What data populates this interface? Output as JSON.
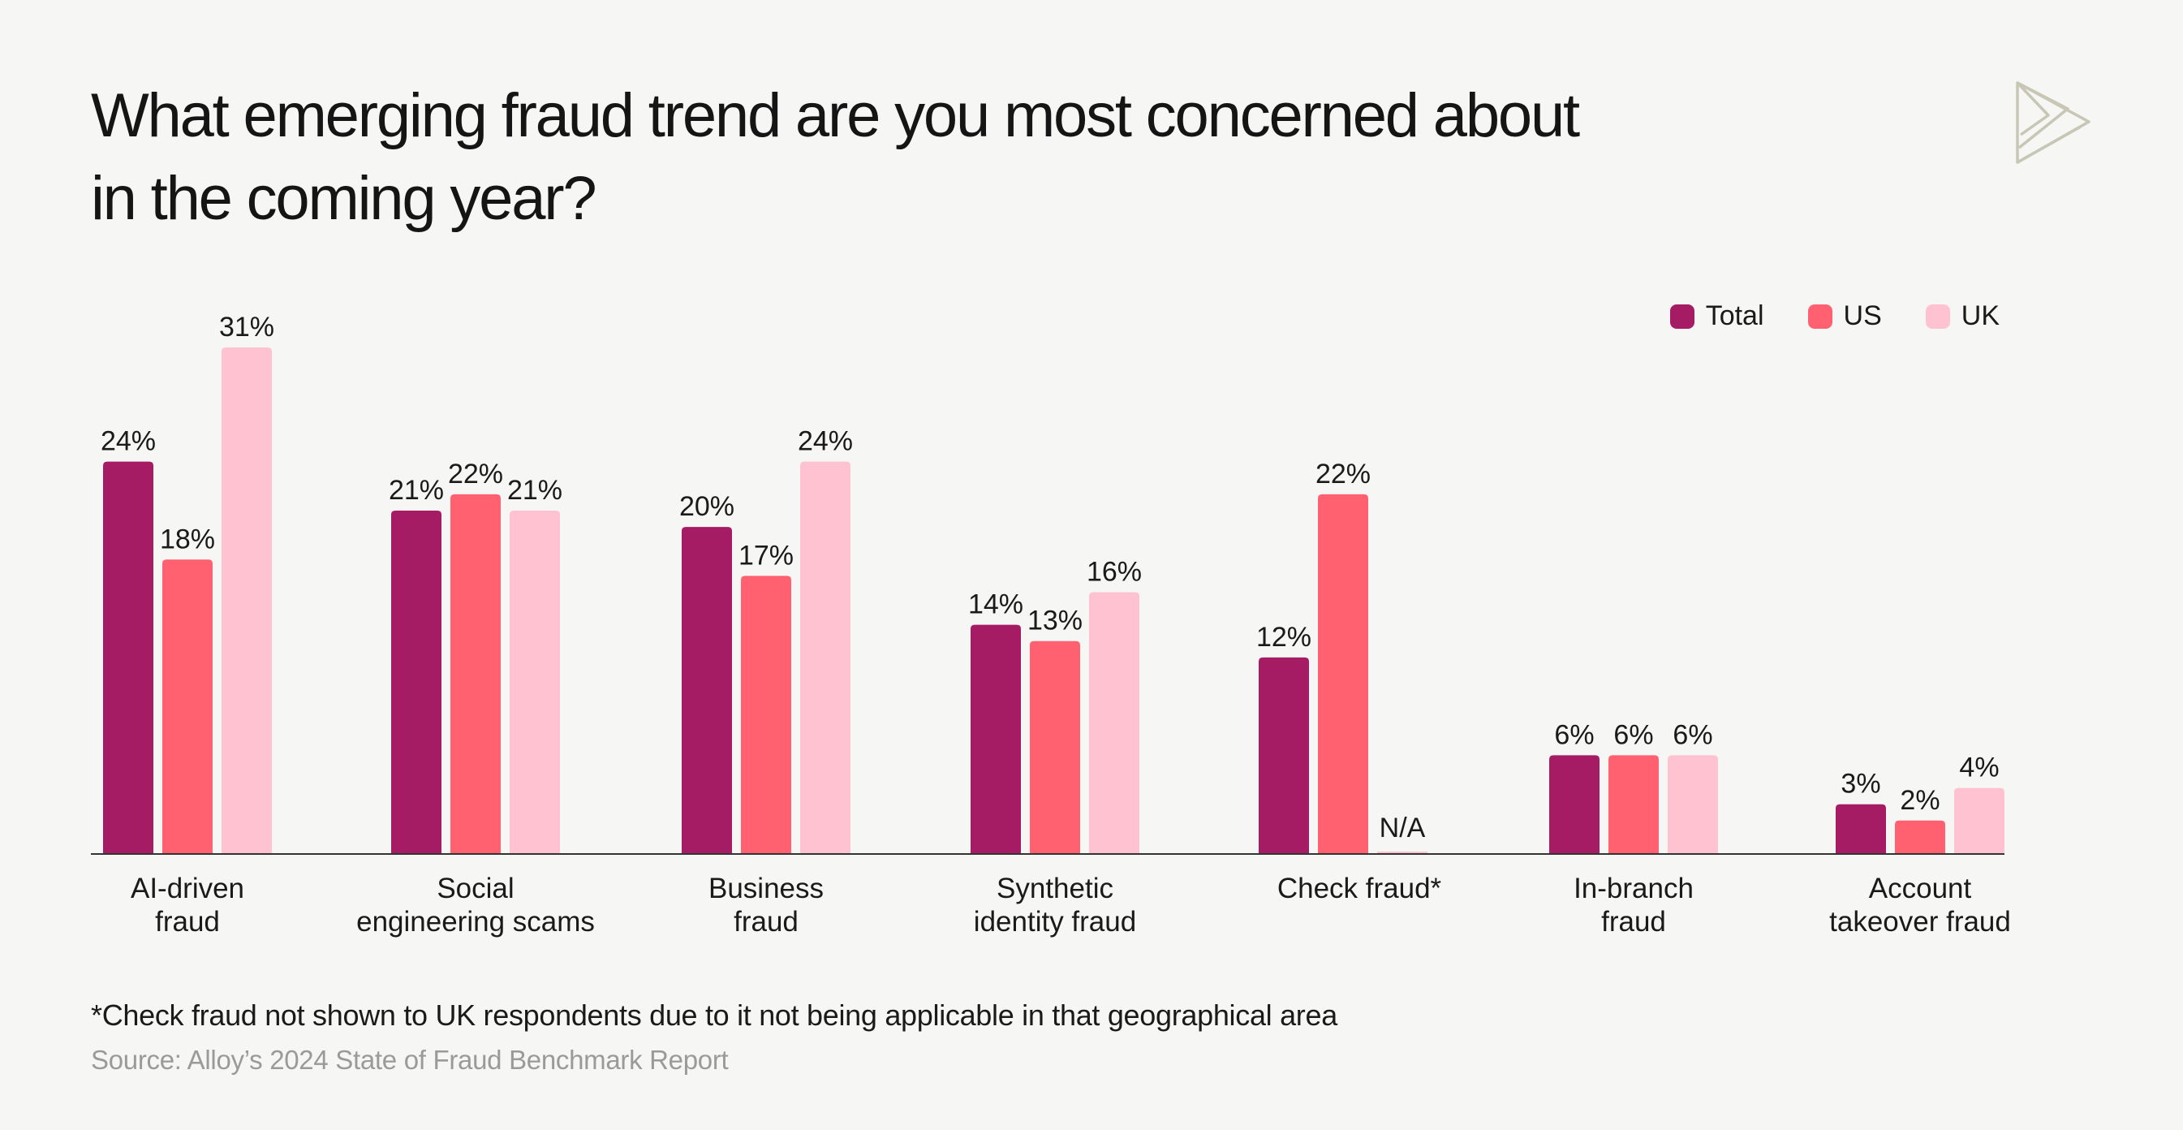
{
  "title": "What emerging fraud trend are you most concerned about in the coming year?",
  "footnote": "*Check fraud not shown to UK respondents due to it not being applicable in that geographical area",
  "source": "Source: Alloy’s 2024 State of Fraud Benchmark Report",
  "logo_icon": "triangle-logo-icon",
  "colors": {
    "Total": "#a51c64",
    "US": "#ff6170",
    "UK": "#ffc2d0",
    "axis": "#333333"
  },
  "chart_data": {
    "type": "bar",
    "title": "What emerging fraud trend are you most concerned about in the coming year?",
    "categories": [
      [
        "AI-driven",
        "fraud"
      ],
      [
        "Social",
        "engineering scams"
      ],
      [
        "Business",
        "fraud"
      ],
      [
        "Synthetic",
        "identity fraud"
      ],
      [
        "Check fraud*"
      ],
      [
        "In-branch",
        "fraud"
      ],
      [
        "Account",
        "takeover fraud"
      ]
    ],
    "series": [
      {
        "name": "Total",
        "values": [
          24,
          21,
          20,
          14,
          12,
          6,
          3
        ],
        "labels": [
          "24%",
          "21%",
          "20%",
          "14%",
          "12%",
          "6%",
          "3%"
        ]
      },
      {
        "name": "US",
        "values": [
          18,
          22,
          17,
          13,
          22,
          6,
          2
        ],
        "labels": [
          "18%",
          "22%",
          "17%",
          "13%",
          "22%",
          "6%",
          "2%"
        ]
      },
      {
        "name": "UK",
        "values": [
          31,
          21,
          24,
          16,
          null,
          6,
          4
        ],
        "labels": [
          "31%",
          "21%",
          "24%",
          "16%",
          "N/A",
          "6%",
          "4%"
        ]
      }
    ],
    "ylim": [
      0,
      31
    ],
    "grid": false,
    "legend_position": "top-right"
  }
}
